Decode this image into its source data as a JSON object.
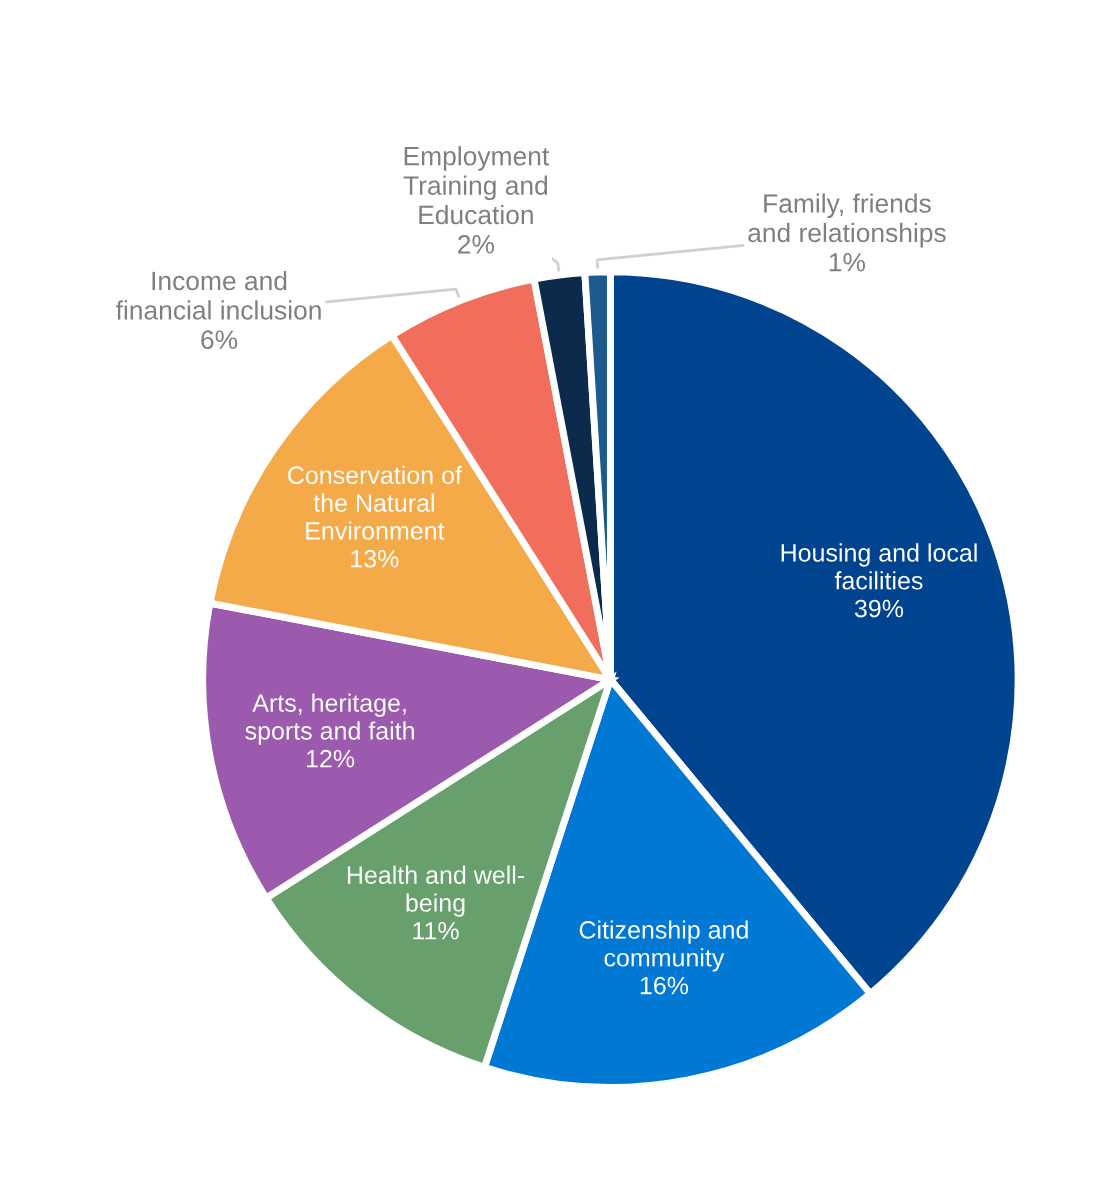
{
  "chart_data": {
    "type": "pie",
    "categories": [
      "Housing and local\nfacilities",
      "Citizenship and\ncommunity",
      "Health and well-\nbeing",
      "Arts, heritage,\nsports and faith",
      "Conservation of\nthe Natural\nEnvironment",
      "Income and\nfinancial inclusion",
      "Employment\nTraining and\nEducation",
      "Family, friends\nand relationships"
    ],
    "values": [
      39,
      16,
      11,
      12,
      13,
      6,
      2,
      1
    ],
    "colors": [
      "#00438e",
      "#0078d4",
      "#67a06d",
      "#9b5aae",
      "#f5aa4a",
      "#f26e5c",
      "#0c2a4c",
      "#1d5a8e"
    ],
    "value_labels": [
      "39%",
      "16%",
      "11%",
      "12%",
      "13%",
      "6%",
      "2%",
      "1%"
    ]
  }
}
